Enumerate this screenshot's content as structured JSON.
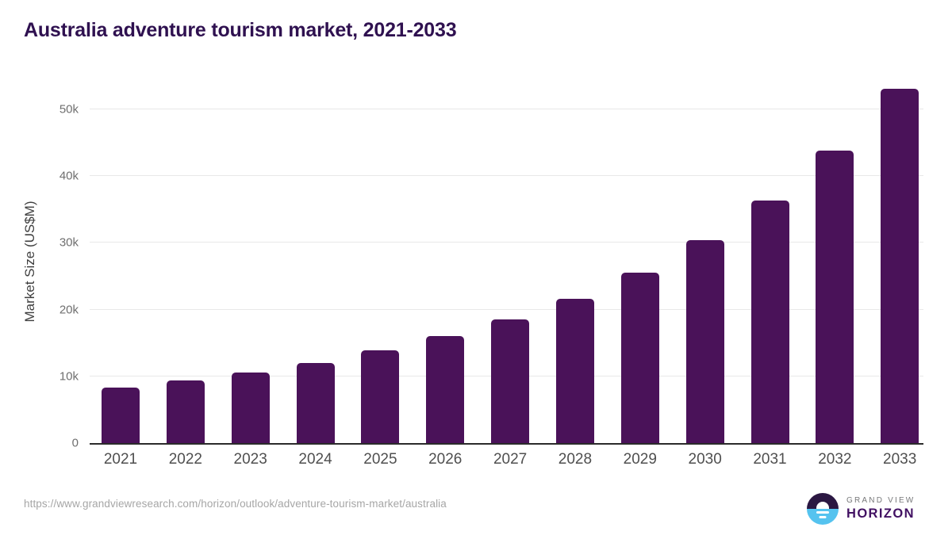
{
  "page": {
    "title": "Australia adventure tourism market, 2021-2033"
  },
  "chart_data": {
    "type": "bar",
    "title": "Australia adventure tourism market, 2021-2033",
    "xlabel": "",
    "ylabel": "Market Size (US$M)",
    "categories": [
      "2021",
      "2022",
      "2023",
      "2024",
      "2025",
      "2026",
      "2027",
      "2028",
      "2029",
      "2030",
      "2031",
      "2032",
      "2033"
    ],
    "values": [
      8300,
      9400,
      10600,
      12000,
      13900,
      16000,
      18500,
      21600,
      25500,
      30400,
      36300,
      43800,
      53100
    ],
    "units": "US$M",
    "ylim": [
      0,
      54500
    ],
    "yticks": [
      {
        "value": 0,
        "label": "0"
      },
      {
        "value": 10000,
        "label": "10k"
      },
      {
        "value": 20000,
        "label": "20k"
      },
      {
        "value": 30000,
        "label": "30k"
      },
      {
        "value": 40000,
        "label": "40k"
      },
      {
        "value": 50000,
        "label": "50k"
      }
    ],
    "grid": "horizontal",
    "legend_position": "none",
    "bar_color": "#4a1259"
  },
  "footer": {
    "source_url": "https://www.grandviewresearch.com/horizon/outlook/adventure-tourism-market/australia",
    "logo": {
      "line1": "GRAND VIEW",
      "line2": "HORIZON"
    }
  },
  "colors": {
    "bar": "#4a1259",
    "title": "#2f1150",
    "axis_line": "#2b2b2b",
    "gridline": "#e8e8e8",
    "ytick_text": "#6f6f6f",
    "xtick_text": "#4f4f4f",
    "url_text": "#a6a6a6",
    "logo_dark": "#2b1742",
    "logo_blue": "#55c3ef",
    "logo_purple_text": "#421163",
    "logo_gray_text": "#77787a"
  }
}
